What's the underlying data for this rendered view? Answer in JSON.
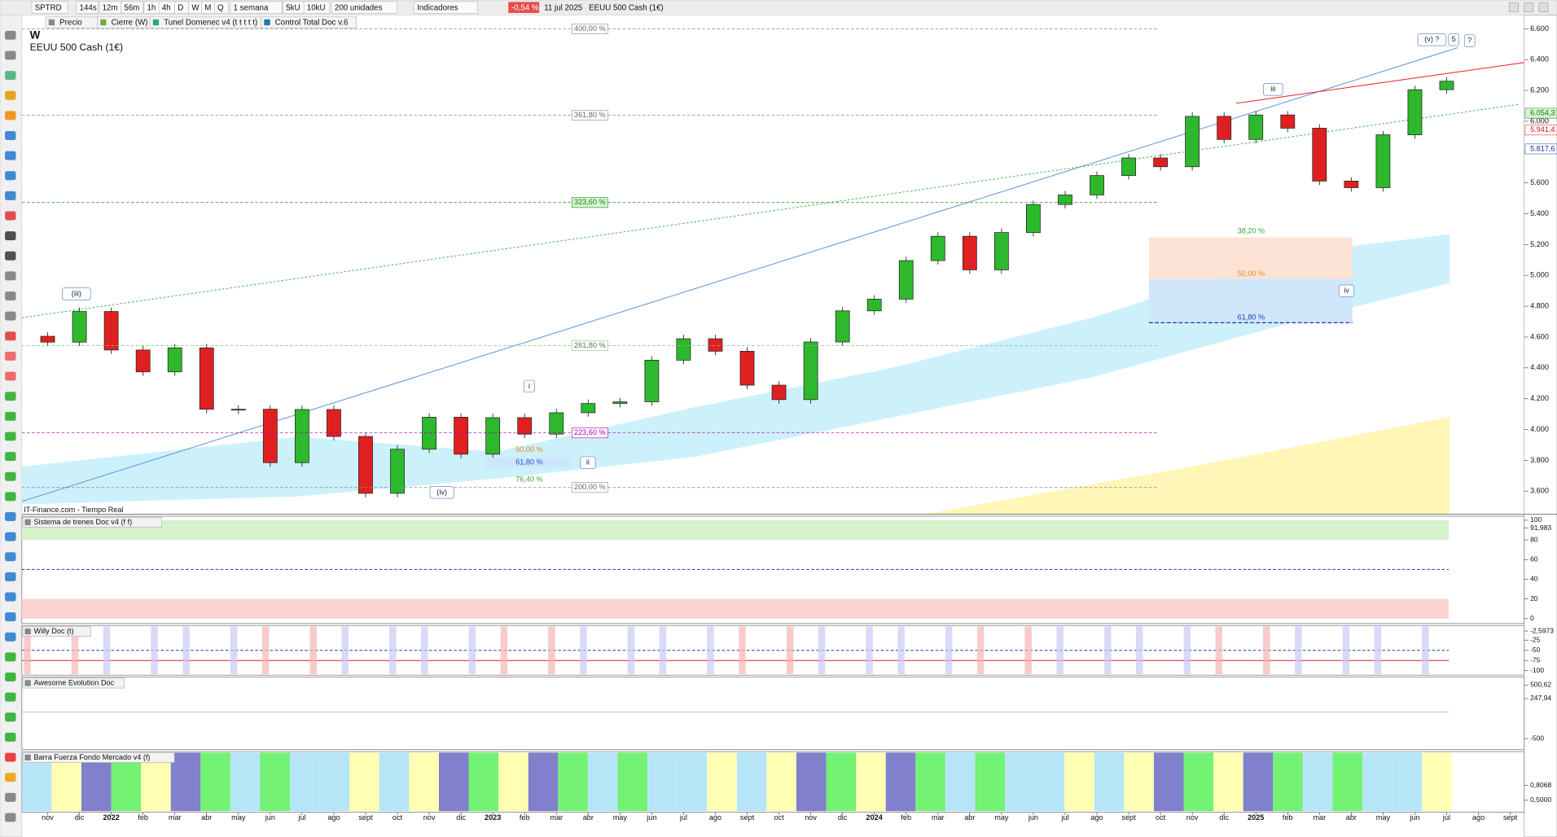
{
  "toolbar": {
    "symbol": "SPTRD",
    "timeframes": [
      "144s",
      "12m",
      "56m",
      "1h",
      "4h",
      "D",
      "W",
      "M",
      "Q"
    ],
    "period": "1 semana",
    "units": [
      "5kU",
      "10kU"
    ],
    "count": "200 unidades",
    "indicators": "Indicadores",
    "change": "-0,54 %",
    "date": "11 jul 2025",
    "instrument": "EEUU 500 Cash (1€)"
  },
  "tabs": [
    "Precio",
    "Cierre (W)",
    "Tunel Domenec v4 (t t t t t)",
    "Control Total Doc v.6"
  ],
  "chart_data": [
    {
      "type": "candlestick",
      "title": "W",
      "subtitle": "EEUU 500 Cash (1€)",
      "source": "IT-Finance.com - Tiempo Real",
      "categories": [
        "nov",
        "dic",
        "2022",
        "feb",
        "mar",
        "abr",
        "may",
        "jun",
        "jul",
        "ago",
        "sept",
        "oct",
        "nov",
        "dic",
        "2023",
        "feb",
        "mar",
        "abr",
        "may",
        "jun",
        "jul",
        "ago",
        "sept",
        "oct",
        "nov",
        "dic",
        "2024",
        "feb",
        "mar",
        "abr",
        "may",
        "jun",
        "jul",
        "ago",
        "sept",
        "oct",
        "nov",
        "dic",
        "2025",
        "feb",
        "mar",
        "abr",
        "may",
        "jun",
        "jul",
        "ago",
        "sept"
      ],
      "open": [
        4605,
        4567,
        4766,
        4516,
        4374,
        4530,
        4132,
        4132,
        3785,
        4130,
        3955,
        3586,
        3872,
        4080,
        3840,
        4077,
        3970,
        4109,
        4169,
        4180,
        4450,
        4589,
        4508,
        4288,
        4194,
        4568,
        4770,
        4846,
        5096,
        5254,
        5036,
        5278,
        5460,
        5522,
        5648,
        5762,
        5705,
        6032,
        5882,
        6041,
        5955,
        5612,
        5569,
        5912,
        6205,
        null,
        null
      ],
      "close": [
        4567,
        4766,
        4516,
        4374,
        4530,
        4132,
        4132,
        3785,
        4130,
        3955,
        3586,
        3872,
        4080,
        3840,
        4077,
        3970,
        4109,
        4169,
        4180,
        4450,
        4589,
        4508,
        4288,
        4194,
        4568,
        4770,
        4846,
        5096,
        5254,
        5036,
        5278,
        5460,
        5522,
        5648,
        5762,
        5705,
        6032,
        5882,
        6041,
        5955,
        5612,
        5569,
        5912,
        6205,
        6260,
        null,
        null
      ],
      "up_color": "#2db82d",
      "down_color": "#e02020",
      "ylim": [
        3450,
        6690
      ],
      "yticks": [
        {
          "value": 3600,
          "label": "3.600"
        },
        {
          "value": 3800,
          "label": "3.800"
        },
        {
          "value": 4000,
          "label": "4.000"
        },
        {
          "value": 4200,
          "label": "4.200"
        },
        {
          "value": 4400,
          "label": "4.400"
        },
        {
          "value": 4600,
          "label": "4.600"
        },
        {
          "value": 4800,
          "label": "4.800"
        },
        {
          "value": 5000,
          "label": "5.000"
        },
        {
          "value": 5200,
          "label": "5.200"
        },
        {
          "value": 5400,
          "label": "5.400"
        },
        {
          "value": 5600,
          "label": "5.600"
        },
        {
          "value": 5800,
          "label": "5.800"
        },
        {
          "value": 6000,
          "label": "6.000"
        },
        {
          "value": 6200,
          "label": "6.200"
        },
        {
          "value": 6400,
          "label": "6.400"
        },
        {
          "value": 6600,
          "label": "6.600"
        }
      ],
      "price_labels": [
        "6.054,3",
        "5.941,4",
        "5.817,6"
      ],
      "fib_levels": [
        "400,00 %",
        "361,80 %",
        "323,60 %",
        "261,80 %",
        "223,60 %",
        "200,00 %"
      ],
      "fib_small": [
        "50,00 %",
        "61,80 %",
        "76,40 %"
      ],
      "fib_right": [
        "38,20 %",
        "50,00 %",
        "61,80 %"
      ],
      "waves": [
        "(iii)",
        "(iv)",
        "i",
        "ii",
        "iii",
        "iv",
        "(v) ?",
        "5",
        "?"
      ]
    },
    {
      "type": "indicator",
      "title": "Sistema de trenes Doc v4 (f f)",
      "ylim": [
        -5,
        104
      ],
      "yticks": [
        0,
        20,
        40,
        60,
        80,
        {
          "value": 91.983,
          "label": "91,983"
        },
        100
      ]
    },
    {
      "type": "indicator",
      "title": "Willy Doc (t)",
      "ylim": [
        -111,
        11
      ],
      "yticks": [
        {
          "value": -2.5973,
          "label": "-2,5973"
        },
        -25,
        -50,
        -75,
        -100
      ]
    },
    {
      "type": "indicator",
      "title": "Awesome Evolution Doc",
      "ylim": [
        -704,
        648
      ],
      "yticks": [
        {
          "value": 500.62,
          "label": "500,62"
        },
        {
          "value": 247.94,
          "label": "247,94"
        },
        -500
      ]
    },
    {
      "type": "indicator",
      "title": "Barra Fuerza Fondo Mercado v4 (f)",
      "ylim": [
        0.255,
        1.502
      ],
      "yticks": [
        {
          "value": 0.8068,
          "label": "0,8068"
        },
        {
          "value": 0.5,
          "label": "0,5000"
        }
      ]
    }
  ]
}
